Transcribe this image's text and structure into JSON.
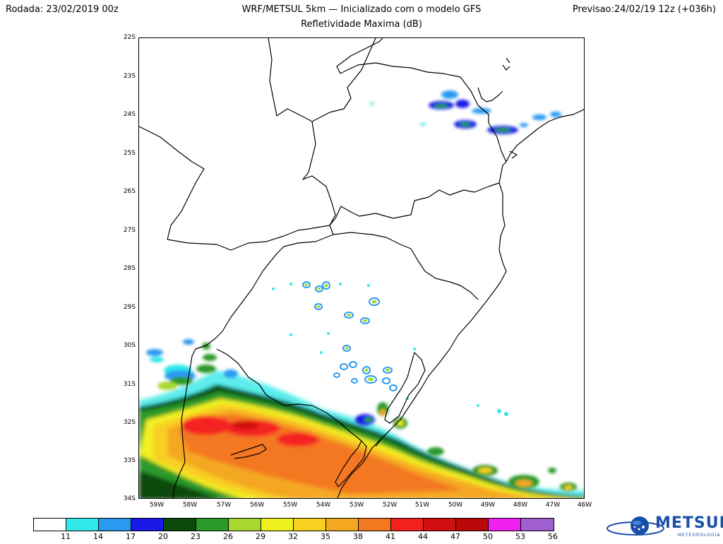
{
  "header": {
    "run_label": "Rodada: 23/02/2019 00z",
    "model_title": "WRF/METSUL 5km — Inicializado com o modelo GFS",
    "forecast_label": "Previsao:24/02/19 12z (+036h)",
    "field_title": "Refletividade Maxima (dB)"
  },
  "axes": {
    "lat_labels": [
      "22S",
      "23S",
      "24S",
      "25S",
      "26S",
      "27S",
      "28S",
      "29S",
      "30S",
      "31S",
      "32S",
      "33S",
      "34S"
    ],
    "lon_labels": [
      "59W",
      "58W",
      "57W",
      "56W",
      "55W",
      "54W",
      "53W",
      "52W",
      "51W",
      "50W",
      "49W",
      "48W",
      "47W",
      "46W"
    ]
  },
  "colorbar": {
    "colors": [
      "#ffffff",
      "#33e8e8",
      "#2a9af0",
      "#1a1ae8",
      "#0a4a0a",
      "#2a9a2a",
      "#a8d830",
      "#f0f020",
      "#f8d020",
      "#f4a820",
      "#f47820",
      "#f42020",
      "#d01010",
      "#b80808",
      "#f020f0",
      "#a060d0"
    ],
    "ticks": [
      "11",
      "14",
      "17",
      "20",
      "23",
      "26",
      "29",
      "32",
      "35",
      "38",
      "41",
      "44",
      "47",
      "50",
      "53",
      "56"
    ]
  },
  "logo": {
    "name": "METSUL",
    "sub": "METEOROLOGIA"
  }
}
